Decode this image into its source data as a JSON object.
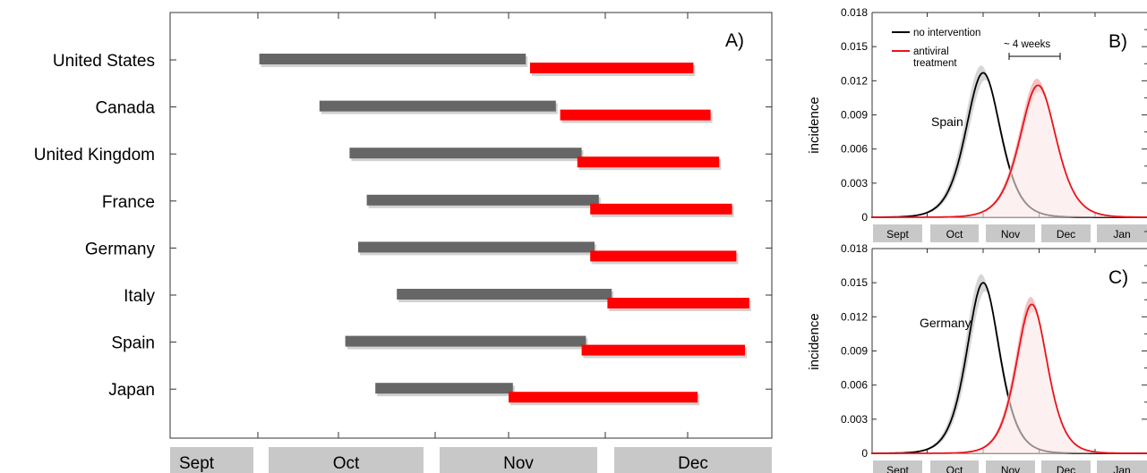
{
  "chart_data": [
    {
      "panel": "A)",
      "type": "bar",
      "categories": [
        "United States",
        "Canada",
        "United Kingdom",
        "France",
        "Germany",
        "Italy",
        "Spain",
        "Japan"
      ],
      "month_labels": [
        "Sept",
        "Oct",
        "Nov",
        "Dec"
      ],
      "series": [
        {
          "color": "#666666",
          "ranges": [
            [
              -29,
              2
            ],
            [
              -22,
              5.5
            ],
            [
              -18.5,
              8.5
            ],
            [
              -16.5,
              10.5
            ],
            [
              -17.5,
              10
            ],
            [
              -13,
              12
            ],
            [
              -19,
              9
            ],
            [
              -15.5,
              0.5
            ]
          ]
        },
        {
          "color": "#ff0000",
          "ranges": [
            [
              2.5,
              21.5
            ],
            [
              6,
              23.5
            ],
            [
              8,
              24.5
            ],
            [
              9.5,
              26
            ],
            [
              9.5,
              26.5
            ],
            [
              11.5,
              28
            ],
            [
              8.5,
              27.5
            ],
            [
              0,
              22
            ]
          ]
        }
      ]
    },
    {
      "panel": "B)",
      "type": "line",
      "annotation": "Spain",
      "ylabel": "incidence",
      "yticks": [
        "0",
        "0.003",
        "0.006",
        "0.009",
        "0.012",
        "0.015",
        "0.018"
      ],
      "ylim": [
        0,
        0.018
      ],
      "month_labels": [
        "Sept",
        "Oct",
        "Nov",
        "Dec",
        "Jan"
      ],
      "legend": [
        "no intervention",
        "antiviral treatment"
      ],
      "delay_annotation": "~ 4 weeks",
      "series": [
        {
          "name": "no intervention",
          "color": "#000000",
          "peak_month": 2.0,
          "peak": 0.0127,
          "width": 0.48
        },
        {
          "name": "antiviral treatment",
          "color": "#e8141a",
          "peak_month": 2.98,
          "peak": 0.0116,
          "width": 0.5
        }
      ]
    },
    {
      "panel": "C)",
      "type": "line",
      "annotation": "Germany",
      "ylabel": "incidence",
      "yticks": [
        "0",
        "0.003",
        "0.006",
        "0.009",
        "0.012",
        "0.015",
        "0.018"
      ],
      "ylim": [
        0,
        0.018
      ],
      "month_labels": [
        "Sept",
        "Oct",
        "Nov",
        "Dec",
        "Jan"
      ],
      "series": [
        {
          "name": "no intervention",
          "color": "#000000",
          "peak_month": 2.0,
          "peak": 0.015,
          "width": 0.45
        },
        {
          "name": "antiviral treatment",
          "color": "#e8141a",
          "peak_month": 2.87,
          "peak": 0.0131,
          "width": 0.43
        }
      ]
    }
  ]
}
